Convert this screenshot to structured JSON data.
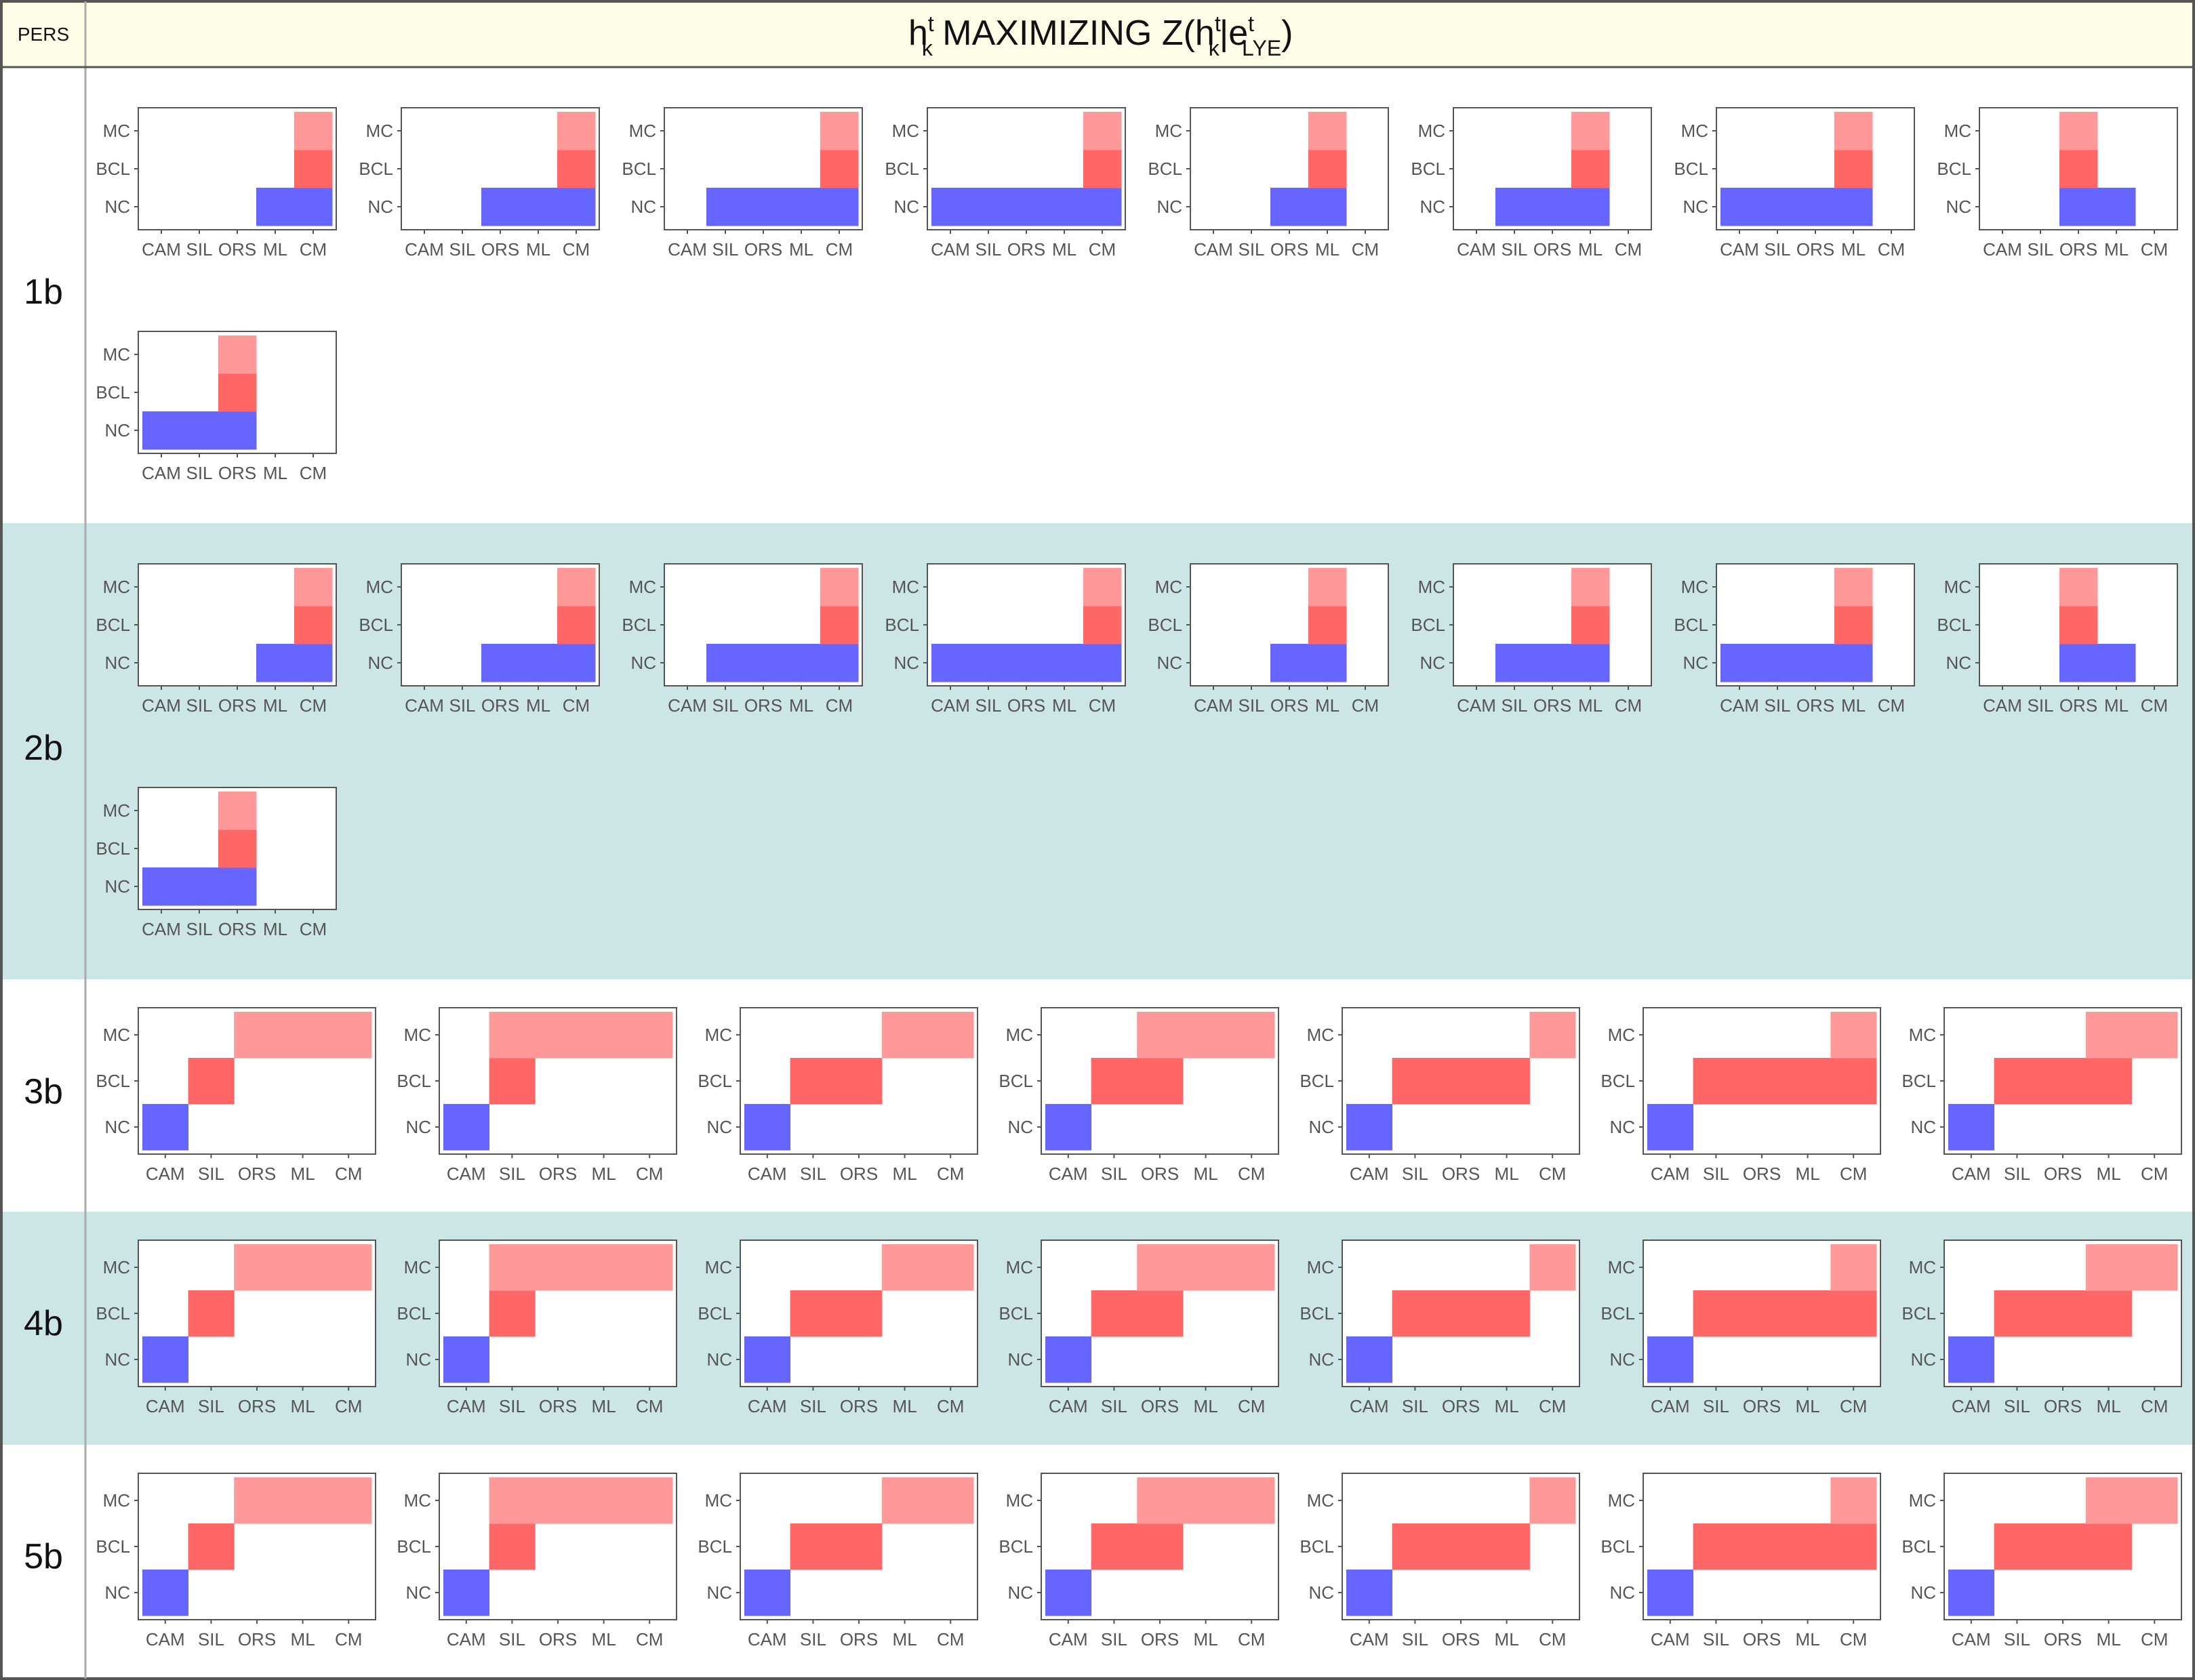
{
  "header": {
    "left_label": "PERS",
    "title": {
      "h": "h",
      "k": "k",
      "t": "t",
      "text": " MAXIMIZING Z(",
      "e": "e",
      "lye": "LYE",
      "bar": "|",
      "close": ")"
    }
  },
  "rows": [
    {
      "label": "1b",
      "style": "wide"
    },
    {
      "label": "2b",
      "style": "wide"
    },
    {
      "label": "3b",
      "style": "narrow"
    },
    {
      "label": "4b",
      "style": "narrow"
    },
    {
      "label": "5b",
      "style": "narrow"
    }
  ],
  "colors": {
    "header_bg": "#fdfce6",
    "band_bg": "#cce5e5",
    "NC": "#6666ff",
    "BCL": "#ff6666",
    "MC": "#ff9999",
    "plot_border": "#555555",
    "tick_text": "#555555"
  },
  "chart_data": {
    "type": "heatmap",
    "x_categories": [
      "CAM",
      "SIL",
      "ORS",
      "ML",
      "CM"
    ],
    "y_categories": [
      "NC",
      "BCL",
      "MC"
    ],
    "panel_sets": {
      "wide": [
        {
          "NC": [
            "ML",
            "CM"
          ],
          "BCL": [
            "CM"
          ],
          "MC": [
            "CM"
          ]
        },
        {
          "NC": [
            "ORS",
            "ML",
            "CM"
          ],
          "BCL": [
            "CM"
          ],
          "MC": [
            "CM"
          ]
        },
        {
          "NC": [
            "SIL",
            "ORS",
            "ML",
            "CM"
          ],
          "BCL": [
            "CM"
          ],
          "MC": [
            "CM"
          ]
        },
        {
          "NC": [
            "CAM",
            "SIL",
            "ORS",
            "ML",
            "CM"
          ],
          "BCL": [
            "CM"
          ],
          "MC": [
            "CM"
          ]
        },
        {
          "NC": [
            "ORS",
            "ML"
          ],
          "BCL": [
            "ML"
          ],
          "MC": [
            "ML"
          ]
        },
        {
          "NC": [
            "SIL",
            "ORS",
            "ML"
          ],
          "BCL": [
            "ML"
          ],
          "MC": [
            "ML"
          ]
        },
        {
          "NC": [
            "CAM",
            "SIL",
            "ORS",
            "ML"
          ],
          "BCL": [
            "ML"
          ],
          "MC": [
            "ML"
          ]
        },
        {
          "NC": [
            "ORS",
            "ML"
          ],
          "BCL": [
            "ORS"
          ],
          "MC": [
            "ORS"
          ]
        },
        {
          "NC": [
            "CAM",
            "SIL",
            "ORS"
          ],
          "BCL": [
            "ORS"
          ],
          "MC": [
            "ORS"
          ]
        }
      ],
      "narrow": [
        {
          "NC": [
            "CAM"
          ],
          "BCL": [
            "SIL"
          ],
          "MC": [
            "ORS",
            "ML",
            "CM"
          ]
        },
        {
          "NC": [
            "CAM"
          ],
          "BCL": [
            "SIL"
          ],
          "MC": [
            "SIL",
            "ORS",
            "ML",
            "CM"
          ]
        },
        {
          "NC": [
            "CAM"
          ],
          "BCL": [
            "SIL",
            "ORS"
          ],
          "MC": [
            "ML",
            "CM"
          ]
        },
        {
          "NC": [
            "CAM"
          ],
          "BCL": [
            "SIL",
            "ORS"
          ],
          "MC": [
            "ORS",
            "ML",
            "CM"
          ]
        },
        {
          "NC": [
            "CAM"
          ],
          "BCL": [
            "SIL",
            "ORS",
            "ML"
          ],
          "MC": [
            "CM"
          ]
        },
        {
          "NC": [
            "CAM"
          ],
          "BCL": [
            "SIL",
            "ORS",
            "ML",
            "CM"
          ],
          "MC": [
            "CM"
          ]
        },
        {
          "NC": [
            "CAM"
          ],
          "BCL": [
            "SIL",
            "ORS",
            "ML"
          ],
          "MC": [
            "ML",
            "CM"
          ]
        }
      ]
    }
  }
}
